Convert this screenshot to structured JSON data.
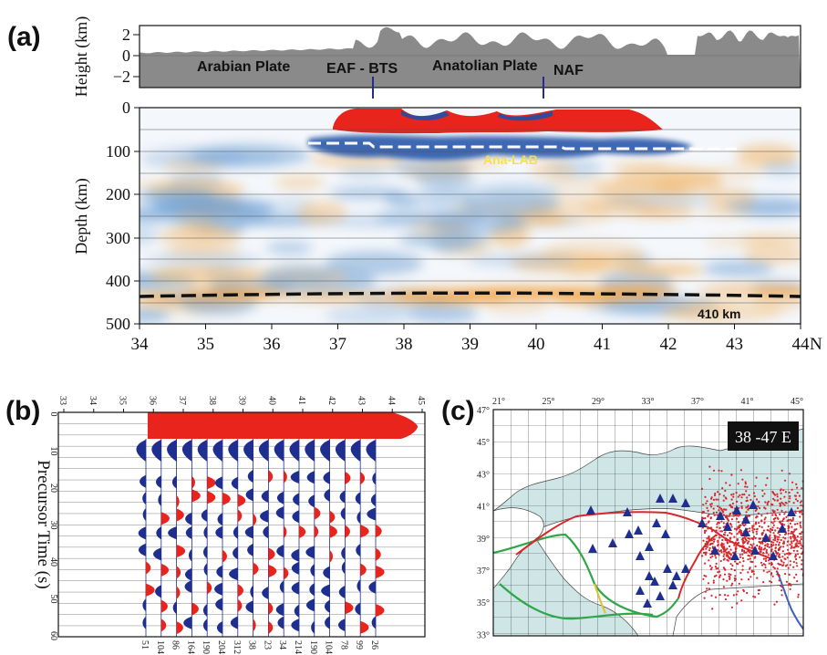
{
  "panels": {
    "a": {
      "letter": "(a)",
      "height_axis": {
        "label": "Height (km)",
        "ticks": [
          "2",
          "0",
          "−2"
        ]
      },
      "depth_axis": {
        "label": "Depth (km)",
        "ticks": [
          "0",
          "100",
          "200",
          "300",
          "400",
          "500"
        ]
      },
      "x_axis": {
        "ticks": [
          "34",
          "35",
          "36",
          "37",
          "38",
          "39",
          "40",
          "41",
          "42",
          "43",
          "44"
        ],
        "unit": "N"
      },
      "plates": [
        "Arabian Plate",
        "Anatolian Plate"
      ],
      "faults": [
        {
          "label": "EAF - BTS",
          "position": 37.6
        },
        {
          "label": "NAF",
          "position": 40.1
        }
      ],
      "layer_labels": {
        "lab": "Ana-LAB",
        "d410": "410 km"
      },
      "colors": {
        "positive": "#e8241c",
        "negative": "#1e4fa6",
        "topo": "#8a8a8a",
        "d410": "#111111",
        "lab_line": "#ffffff"
      }
    },
    "b": {
      "letter": "(b)",
      "top_ticks": [
        "33",
        "34",
        "35",
        "36",
        "37",
        "38",
        "39",
        "40",
        "41",
        "42",
        "43",
        "44",
        "45"
      ],
      "y_axis": {
        "label": "Precursor Time (s)",
        "ticks": [
          "0",
          "10",
          "20",
          "30",
          "40",
          "50",
          "60"
        ]
      },
      "bottom_counts": [
        "51",
        "104",
        "86",
        "164",
        "190",
        "204",
        "312",
        "38",
        "23",
        "34",
        "214",
        "190",
        "104",
        "78",
        "99",
        "26"
      ],
      "colors": {
        "positive": "#e8241c",
        "negative": "#1e2f8f"
      }
    },
    "c": {
      "letter": "(c)",
      "top_ticks": [
        "21°",
        "25°",
        "29°",
        "33°",
        "37°",
        "41°",
        "45°"
      ],
      "lat_ticks": [
        "47°",
        "45°",
        "43°",
        "41°",
        "39°",
        "37°",
        "35°",
        "33°"
      ],
      "range_label": "38 -47 E",
      "colors": {
        "sea": "#cfe6e6",
        "stations": "#1f2f8f",
        "events": "#d9262b",
        "plate_boundary_green": "#2fa64a",
        "fault_red": "#d9262b",
        "river": "#4060c0"
      }
    }
  }
}
